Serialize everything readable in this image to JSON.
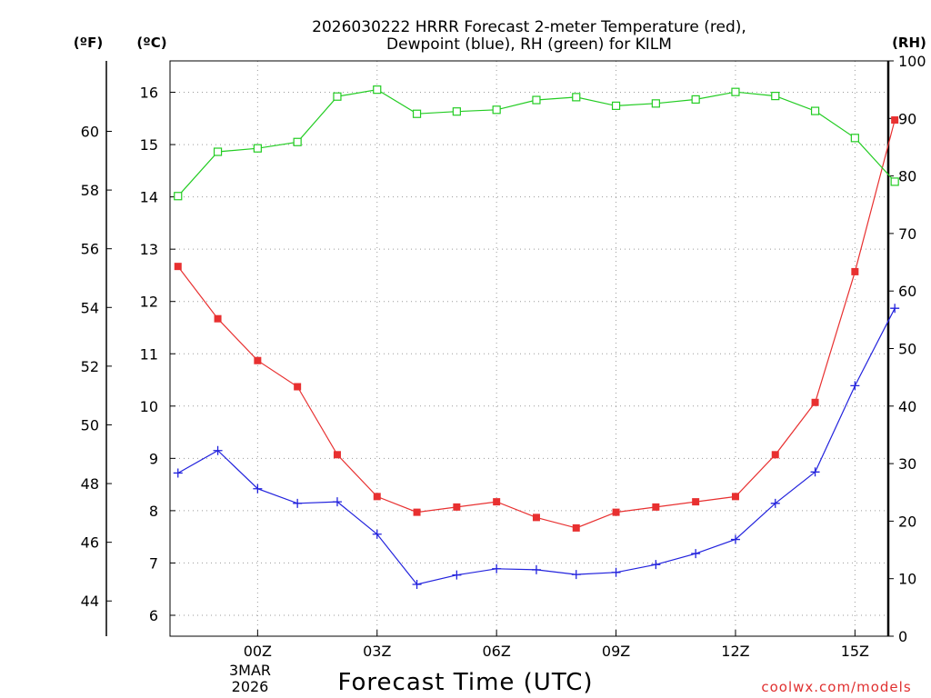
{
  "chart_data": {
    "type": "line",
    "title_line1": "2026030222 HRRR Forecast 2-meter Temperature (red),",
    "title_line2": "Dewpoint (blue), RH (green) for KILM",
    "xlabel": "Forecast Time (UTC)",
    "x_ticks": [
      "00Z",
      "03Z",
      "06Z",
      "09Z",
      "12Z",
      "15Z"
    ],
    "x_date_line1": "3MAR",
    "x_date_line2": "2026",
    "x_hours": [
      -2,
      -1,
      0,
      1,
      2,
      3,
      4,
      5,
      6,
      7,
      8,
      9,
      10,
      11,
      12,
      13,
      14,
      15,
      16
    ],
    "axis_left_outer": {
      "unit": "(ºF)",
      "ticks": [
        "44",
        "46",
        "48",
        "50",
        "52",
        "54",
        "56",
        "58",
        "60"
      ],
      "range_f": [
        42.8,
        62.4
      ]
    },
    "axis_left_inner": {
      "unit": "(ºC)",
      "ticks": [
        "6",
        "7",
        "8",
        "9",
        "10",
        "11",
        "12",
        "13",
        "14",
        "15",
        "16"
      ],
      "range_c": [
        5.6,
        16.6
      ]
    },
    "axis_right": {
      "unit": "(RH)",
      "ticks": [
        "0",
        "10",
        "20",
        "30",
        "40",
        "50",
        "60",
        "70",
        "80",
        "90",
        "100"
      ],
      "range": [
        0,
        100
      ]
    },
    "series": [
      {
        "name": "Temperature",
        "unit": "C",
        "color": "#e83030",
        "marker": "filled-square",
        "values": [
          12.67,
          11.67,
          10.87,
          10.37,
          9.07,
          8.27,
          7.97,
          8.07,
          8.17,
          7.87,
          7.67,
          7.97,
          8.07,
          8.17,
          8.27,
          9.07,
          10.07,
          12.57,
          15.47
        ]
      },
      {
        "name": "Dewpoint",
        "unit": "C",
        "color": "#2222dd",
        "marker": "plus",
        "values": [
          8.72,
          9.15,
          8.42,
          8.14,
          8.17,
          7.55,
          6.59,
          6.77,
          6.89,
          6.87,
          6.78,
          6.82,
          6.97,
          7.18,
          7.45,
          8.14,
          8.74,
          10.39,
          11.87
        ]
      },
      {
        "name": "RH",
        "unit": "%",
        "color": "#22cc22",
        "marker": "open-square",
        "values": [
          76.5,
          84.2,
          84.8,
          85.9,
          93.8,
          95.0,
          90.8,
          91.2,
          91.5,
          93.2,
          93.7,
          92.2,
          92.6,
          93.3,
          94.6,
          93.9,
          91.3,
          86.6,
          79.0
        ]
      }
    ],
    "credit": "coolwx.com/models"
  }
}
